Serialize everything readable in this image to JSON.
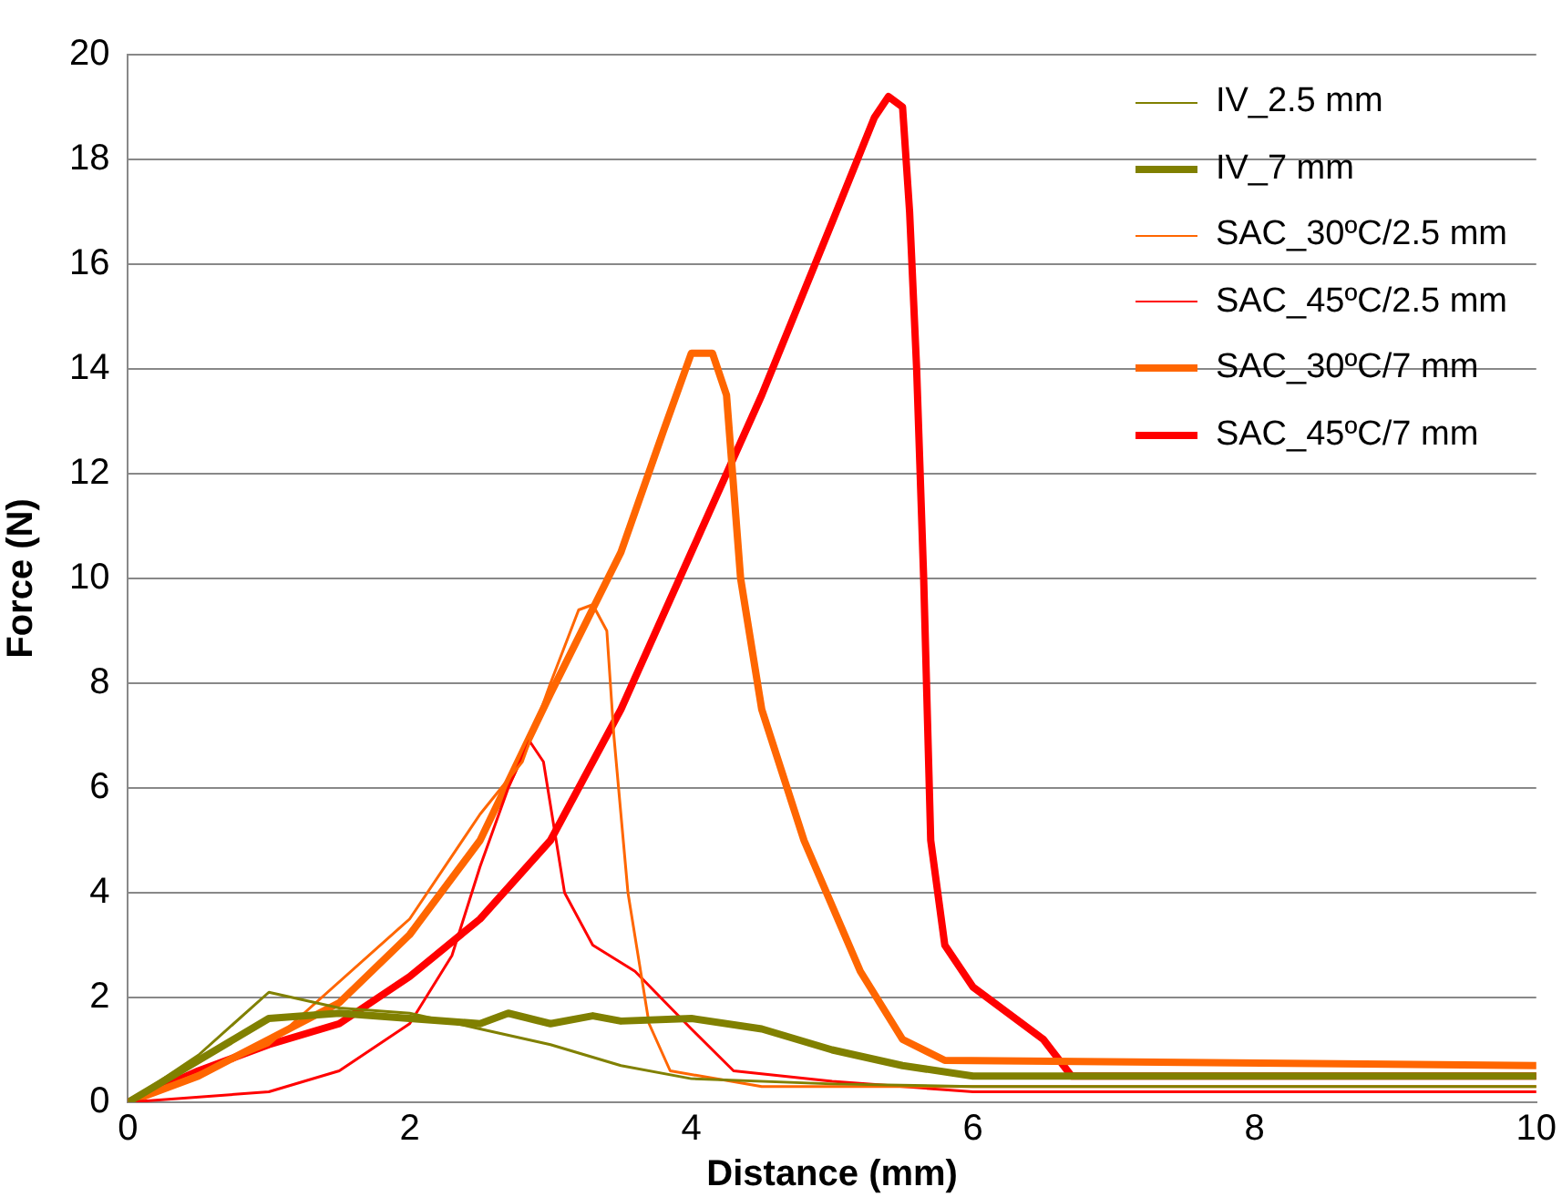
{
  "chart_data": {
    "type": "line",
    "xlabel": "Distance (mm)",
    "ylabel": "Force (N)",
    "xlim": [
      0,
      10
    ],
    "xticks": [
      0,
      2,
      4,
      6,
      8,
      10
    ],
    "ylim": [
      0,
      20
    ],
    "yticks": [
      0,
      2,
      4,
      6,
      8,
      10,
      12,
      14,
      16,
      18,
      20
    ],
    "grid": "y",
    "legend": "top right",
    "marker": "none",
    "line_style": "solid",
    "series": [
      {
        "name": "IV_2.5 mm",
        "color": "#808000",
        "x": [
          0,
          0.5,
          1,
          1.5,
          2,
          2.5,
          3,
          3.5,
          4,
          5,
          6,
          10
        ],
        "values": [
          0,
          0.9,
          2.1,
          1.8,
          1.7,
          1.4,
          1.1,
          0.7,
          0.45,
          0.35,
          0.3,
          0.3
        ]
      },
      {
        "name": "IV_7 mm",
        "color": "#808000",
        "x": [
          0,
          0.5,
          1,
          1.5,
          2,
          2.5,
          2.7,
          3,
          3.3,
          3.5,
          4,
          4.5,
          5,
          5.5,
          6,
          7,
          10
        ],
        "values": [
          0,
          0.8,
          1.6,
          1.7,
          1.6,
          1.5,
          1.7,
          1.5,
          1.65,
          1.55,
          1.6,
          1.4,
          1,
          0.7,
          0.5,
          0.5,
          0.5
        ]
      },
      {
        "name": "SAC_30ºC/2.5 mm",
        "color": "#ff6600",
        "x": [
          0,
          1,
          2,
          2.5,
          2.8,
          3,
          3.2,
          3.3,
          3.4,
          3.45,
          3.55,
          3.7,
          3.85,
          4.5,
          10
        ],
        "values": [
          0,
          1.1,
          3.5,
          5.5,
          6.5,
          8,
          9.4,
          9.5,
          9,
          7,
          4,
          1.5,
          0.6,
          0.3,
          0.3
        ]
      },
      {
        "name": "SAC_45ºC/2.5 mm",
        "color": "#ff0000",
        "x": [
          0,
          1,
          1.5,
          2,
          2.3,
          2.5,
          2.7,
          2.85,
          2.95,
          3.1,
          3.3,
          3.6,
          4,
          4.3,
          5,
          6,
          10
        ],
        "values": [
          0,
          0.2,
          0.6,
          1.5,
          2.8,
          4.5,
          6,
          6.9,
          6.5,
          4,
          3,
          2.5,
          1.4,
          0.6,
          0.4,
          0.2,
          0.2
        ]
      },
      {
        "name": "SAC_30ºC/7 mm",
        "color": "#ff6600",
        "x": [
          0,
          0.5,
          1,
          1.5,
          2,
          2.5,
          3,
          3.5,
          3.8,
          4,
          4.15,
          4.25,
          4.35,
          4.5,
          4.8,
          5.2,
          5.5,
          5.8,
          10
        ],
        "values": [
          0,
          0.5,
          1.2,
          1.9,
          3.2,
          5,
          7.8,
          10.5,
          12.8,
          14.3,
          14.3,
          13.5,
          10,
          7.5,
          5,
          2.5,
          1.2,
          0.8,
          0.7
        ]
      },
      {
        "name": "SAC_45ºC/7 mm",
        "color": "#ff0000",
        "x": [
          0,
          0.5,
          1,
          1.5,
          2,
          2.5,
          3,
          3.5,
          4,
          4.5,
          5,
          5.3,
          5.4,
          5.5,
          5.55,
          5.6,
          5.65,
          5.7,
          5.8,
          6,
          6.5,
          6.7,
          10
        ],
        "values": [
          0,
          0.6,
          1.1,
          1.5,
          2.4,
          3.5,
          5,
          7.5,
          10.5,
          13.5,
          16.8,
          18.8,
          19.2,
          19,
          17,
          14,
          10,
          5,
          3,
          2.2,
          1.2,
          0.5,
          0.5
        ]
      }
    ]
  }
}
